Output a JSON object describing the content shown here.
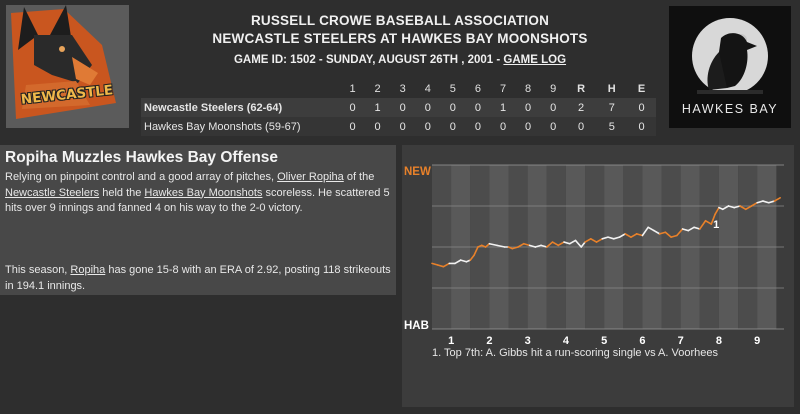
{
  "header": {
    "association": "RUSSELL CROWE BASEBALL ASSOCIATION",
    "matchup": "NEWCASTLE STEELERS AT HAWKES BAY MOONSHOTS",
    "game_info": "GAME ID: 1502 - SUNDAY, AUGUST 26TH , 2001 - ",
    "game_log_link": "GAME LOG"
  },
  "logos": {
    "left_text": "NEWCASTLE",
    "right_text": "HAWKES BAY"
  },
  "linescore": {
    "columns": [
      "1",
      "2",
      "3",
      "4",
      "5",
      "6",
      "7",
      "8",
      "9",
      "R",
      "H",
      "E"
    ],
    "teams": [
      {
        "name": "Newcastle Steelers (62-64)",
        "scores": [
          "0",
          "1",
          "0",
          "0",
          "0",
          "0",
          "1",
          "0",
          "0",
          "2",
          "7",
          "0"
        ]
      },
      {
        "name": "Hawkes Bay Moonshots (59-67)",
        "scores": [
          "0",
          "0",
          "0",
          "0",
          "0",
          "0",
          "0",
          "0",
          "0",
          "0",
          "5",
          "0"
        ]
      }
    ]
  },
  "story": {
    "headline": "Ropiha Muzzles Hawkes Bay Offense",
    "p1_a": "Relying on pinpoint control and a good array of pitches, ",
    "p1_link1": "Oliver Ropiha",
    "p1_b": " of the ",
    "p1_link2": "Newcastle Steelers",
    "p1_c": " held the ",
    "p1_link3": "Hawkes Bay Moonshots",
    "p1_d": " scoreless. He scattered 5 hits over 9 innings and fanned 4 on his way to the 2-0 victory.",
    "p2_a": "This season, ",
    "p2_link": "Ropiha",
    "p2_b": " has gone 15-8 with an ERA of 2.92, posting 118 strikeouts in 194.1 innings."
  },
  "chart_data": {
    "type": "line",
    "ylabel_top": "NEW",
    "ylabel_bottom": "HAB",
    "x_ticks": [
      "1",
      "2",
      "3",
      "4",
      "5",
      "6",
      "7",
      "8",
      "9"
    ],
    "xlim": [
      0,
      9.2
    ],
    "ylim": [
      0,
      1
    ],
    "annotation_marker": "1",
    "annotation_x": 7.4,
    "annotation_text": "1. Top 7th: A. Gibbs hit a run-scoring single vs A. Voorhees",
    "colors": {
      "top_half": "#e8812a",
      "bottom_half": "#f2f2f2",
      "band_dark": "#4c4c4c",
      "band_light": "#595959"
    },
    "series": [
      {
        "x": 0.0,
        "y": 0.4
      },
      {
        "x": 0.15,
        "y": 0.39
      },
      {
        "x": 0.3,
        "y": 0.38
      },
      {
        "x": 0.45,
        "y": 0.4
      },
      {
        "x": 0.6,
        "y": 0.4
      },
      {
        "x": 0.75,
        "y": 0.42
      },
      {
        "x": 0.9,
        "y": 0.41
      },
      {
        "x": 1.0,
        "y": 0.42
      },
      {
        "x": 1.1,
        "y": 0.45
      },
      {
        "x": 1.2,
        "y": 0.5
      },
      {
        "x": 1.3,
        "y": 0.51
      },
      {
        "x": 1.4,
        "y": 0.5
      },
      {
        "x": 1.5,
        "y": 0.52
      },
      {
        "x": 1.7,
        "y": 0.51
      },
      {
        "x": 1.9,
        "y": 0.5
      },
      {
        "x": 2.0,
        "y": 0.5
      },
      {
        "x": 2.1,
        "y": 0.49
      },
      {
        "x": 2.25,
        "y": 0.5
      },
      {
        "x": 2.4,
        "y": 0.52
      },
      {
        "x": 2.55,
        "y": 0.51
      },
      {
        "x": 2.7,
        "y": 0.5
      },
      {
        "x": 2.85,
        "y": 0.51
      },
      {
        "x": 3.0,
        "y": 0.5
      },
      {
        "x": 3.15,
        "y": 0.53
      },
      {
        "x": 3.3,
        "y": 0.51
      },
      {
        "x": 3.45,
        "y": 0.53
      },
      {
        "x": 3.6,
        "y": 0.52
      },
      {
        "x": 3.75,
        "y": 0.54
      },
      {
        "x": 3.9,
        "y": 0.5
      },
      {
        "x": 4.0,
        "y": 0.53
      },
      {
        "x": 4.15,
        "y": 0.55
      },
      {
        "x": 4.3,
        "y": 0.53
      },
      {
        "x": 4.45,
        "y": 0.55
      },
      {
        "x": 4.6,
        "y": 0.56
      },
      {
        "x": 4.75,
        "y": 0.55
      },
      {
        "x": 4.9,
        "y": 0.56
      },
      {
        "x": 5.05,
        "y": 0.58
      },
      {
        "x": 5.2,
        "y": 0.56
      },
      {
        "x": 5.35,
        "y": 0.58
      },
      {
        "x": 5.5,
        "y": 0.57
      },
      {
        "x": 5.65,
        "y": 0.62
      },
      {
        "x": 5.8,
        "y": 0.6
      },
      {
        "x": 5.95,
        "y": 0.58
      },
      {
        "x": 6.1,
        "y": 0.59
      },
      {
        "x": 6.25,
        "y": 0.56
      },
      {
        "x": 6.4,
        "y": 0.57
      },
      {
        "x": 6.55,
        "y": 0.61
      },
      {
        "x": 6.7,
        "y": 0.6
      },
      {
        "x": 6.85,
        "y": 0.62
      },
      {
        "x": 7.0,
        "y": 0.61
      },
      {
        "x": 7.15,
        "y": 0.66
      },
      {
        "x": 7.3,
        "y": 0.64
      },
      {
        "x": 7.4,
        "y": 0.7
      },
      {
        "x": 7.5,
        "y": 0.74
      },
      {
        "x": 7.6,
        "y": 0.73
      },
      {
        "x": 7.75,
        "y": 0.75
      },
      {
        "x": 7.9,
        "y": 0.74
      },
      {
        "x": 8.05,
        "y": 0.75
      },
      {
        "x": 8.2,
        "y": 0.73
      },
      {
        "x": 8.35,
        "y": 0.75
      },
      {
        "x": 8.5,
        "y": 0.77
      },
      {
        "x": 8.65,
        "y": 0.78
      },
      {
        "x": 8.8,
        "y": 0.77
      },
      {
        "x": 8.95,
        "y": 0.78
      },
      {
        "x": 9.1,
        "y": 0.8
      }
    ]
  }
}
